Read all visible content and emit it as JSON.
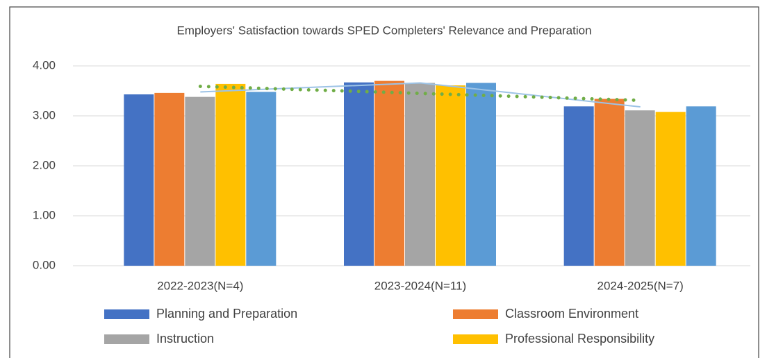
{
  "chart_data": {
    "type": "bar",
    "title": "Employers' Satisfaction towards SPED Completers' Relevance and Preparation",
    "categories": [
      "2022-2023(N=4)",
      "2023-2024(N=11)",
      "2024-2025(N=7)"
    ],
    "series": [
      {
        "name": "Planning and Preparation",
        "color": "#4472c4",
        "values": [
          3.43,
          3.67,
          3.19
        ]
      },
      {
        "name": "Classroom Environment",
        "color": "#ed7d31",
        "values": [
          3.46,
          3.7,
          3.34
        ]
      },
      {
        "name": "Instruction",
        "color": "#a5a5a5",
        "values": [
          3.38,
          3.66,
          3.11
        ]
      },
      {
        "name": "Professional Responsibility",
        "color": "#ffc000",
        "values": [
          3.64,
          3.61,
          3.08
        ]
      },
      {
        "color": "#5b9bd5",
        "values": [
          3.48,
          3.66,
          3.19
        ]
      },
      {
        "type": "line",
        "color": "#9dc3e6",
        "values": [
          3.48,
          3.66,
          3.18
        ]
      },
      {
        "type": "line",
        "color": "#70ad47",
        "dotted": true,
        "values": [
          3.59,
          3.45,
          3.31
        ]
      }
    ],
    "ylim": [
      0,
      4
    ],
    "yticks": [
      {
        "value": 0,
        "label": "0.00"
      },
      {
        "value": 1,
        "label": "1.00"
      },
      {
        "value": 2,
        "label": "2.00"
      },
      {
        "value": 3,
        "label": "3.00"
      },
      {
        "value": 4,
        "label": "4.00"
      }
    ],
    "grid": true,
    "legend": "bottom"
  }
}
